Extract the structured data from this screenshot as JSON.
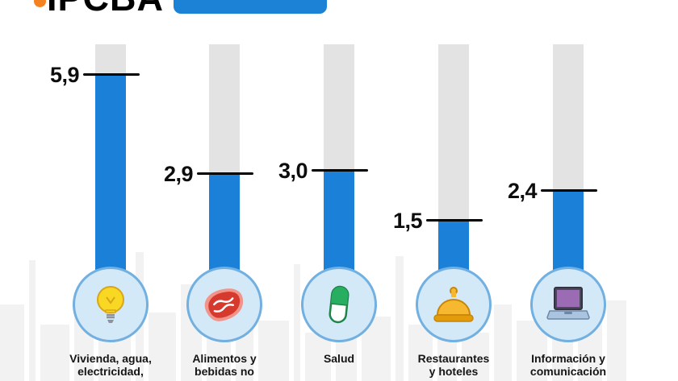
{
  "header": {
    "logo_text": "IPCBA",
    "logo_mark": "flame-dot-icon",
    "accent_orange": "#f58220",
    "badge_color": "#1c82d6"
  },
  "chart_data": {
    "type": "bar",
    "orientation": "vertical",
    "title": "",
    "categories": [
      "Vivienda, agua,\nelectricidad,",
      "Alimentos y\nbebidas no",
      "Salud",
      "Restaurantes\ny hoteles",
      "Información y\ncomunicación"
    ],
    "values": [
      5.9,
      2.9,
      3.0,
      1.5,
      2.4
    ],
    "value_labels": [
      "5,9",
      "2,9",
      "3,0",
      "1,5",
      "2,4"
    ],
    "icons": [
      "lightbulb-icon",
      "steak-icon",
      "pill-icon",
      "bell-icon",
      "laptop-icon"
    ],
    "ylim": [
      0,
      6.8
    ],
    "bar_color": "#1a80d8",
    "track_color": "#e3e3e3",
    "marker_color": "#000000",
    "icon_circle_fill": "#d4e9f8",
    "icon_circle_border": "#71b0e0",
    "grid": false,
    "legend": false
  }
}
